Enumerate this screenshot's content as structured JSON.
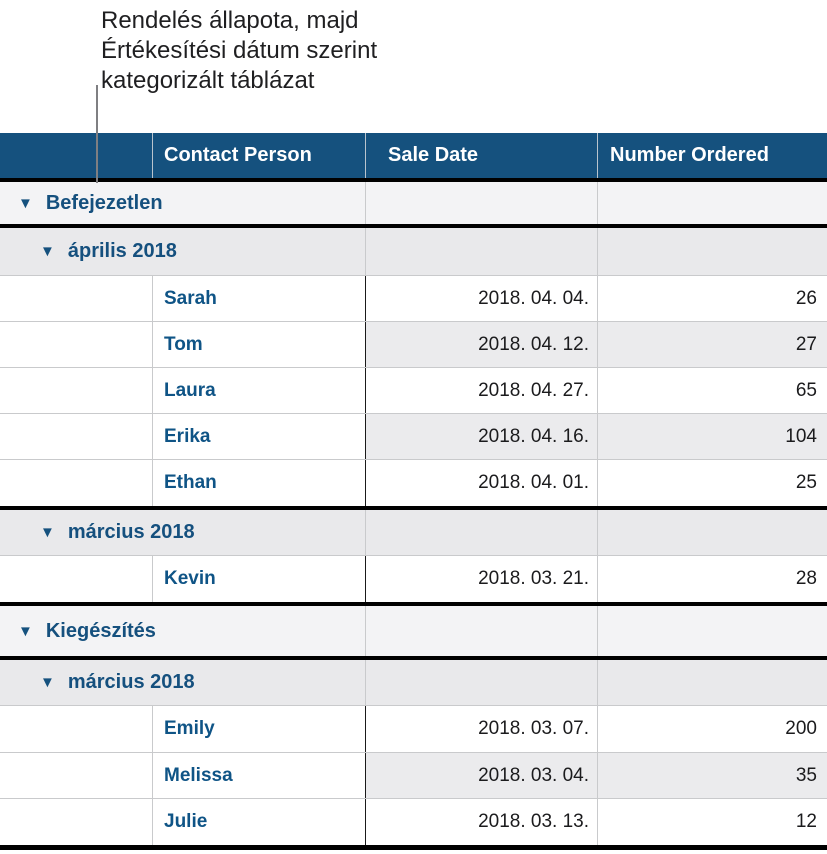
{
  "annotation": {
    "lines": [
      "Rendelés állapota, majd",
      "Értékesítési dátum szerint",
      "kategorizált táblázat"
    ]
  },
  "table": {
    "disclosure_icon": "▼",
    "columns": [
      {
        "label": ""
      },
      {
        "label": "Contact Person"
      },
      {
        "label": "Sale Date"
      },
      {
        "label": "Number Ordered"
      }
    ],
    "groups": [
      {
        "category": "Befejezetlen",
        "subgroups": [
          {
            "label": "április 2018",
            "rows": [
              {
                "name": "Sarah",
                "date": "2018. 04. 04.",
                "qty": "26"
              },
              {
                "name": "Tom",
                "date": "2018. 04. 12.",
                "qty": "27"
              },
              {
                "name": "Laura",
                "date": "2018. 04. 27.",
                "qty": "65"
              },
              {
                "name": "Erika",
                "date": "2018. 04. 16.",
                "qty": "104"
              },
              {
                "name": "Ethan",
                "date": "2018. 04. 01.",
                "qty": "25"
              }
            ]
          },
          {
            "label": "március 2018",
            "rows": [
              {
                "name": "Kevin",
                "date": "2018. 03. 21.",
                "qty": "28"
              }
            ]
          }
        ]
      },
      {
        "category": "Kiegészítés",
        "subgroups": [
          {
            "label": "március 2018",
            "rows": [
              {
                "name": "Emily",
                "date": "2018. 03. 07.",
                "qty": "200"
              },
              {
                "name": "Melissa",
                "date": "2018. 03. 04.",
                "qty": "35"
              },
              {
                "name": "Julie",
                "date": "2018. 03. 13.",
                "qty": "12"
              }
            ]
          }
        ]
      }
    ],
    "colors": {
      "header_bg": "#15517e",
      "header_text": "#ffffff",
      "category_row_bg": "#f3f3f5",
      "subcategory_row_bg": "#e9e9eb",
      "stripe_cell_bg": "#ebebed",
      "category_text": "#15507e",
      "name_text": "#0f5486",
      "value_text": "#1b1b1d",
      "group_divider": "#000000",
      "grid_line": "#c9cacc"
    }
  }
}
